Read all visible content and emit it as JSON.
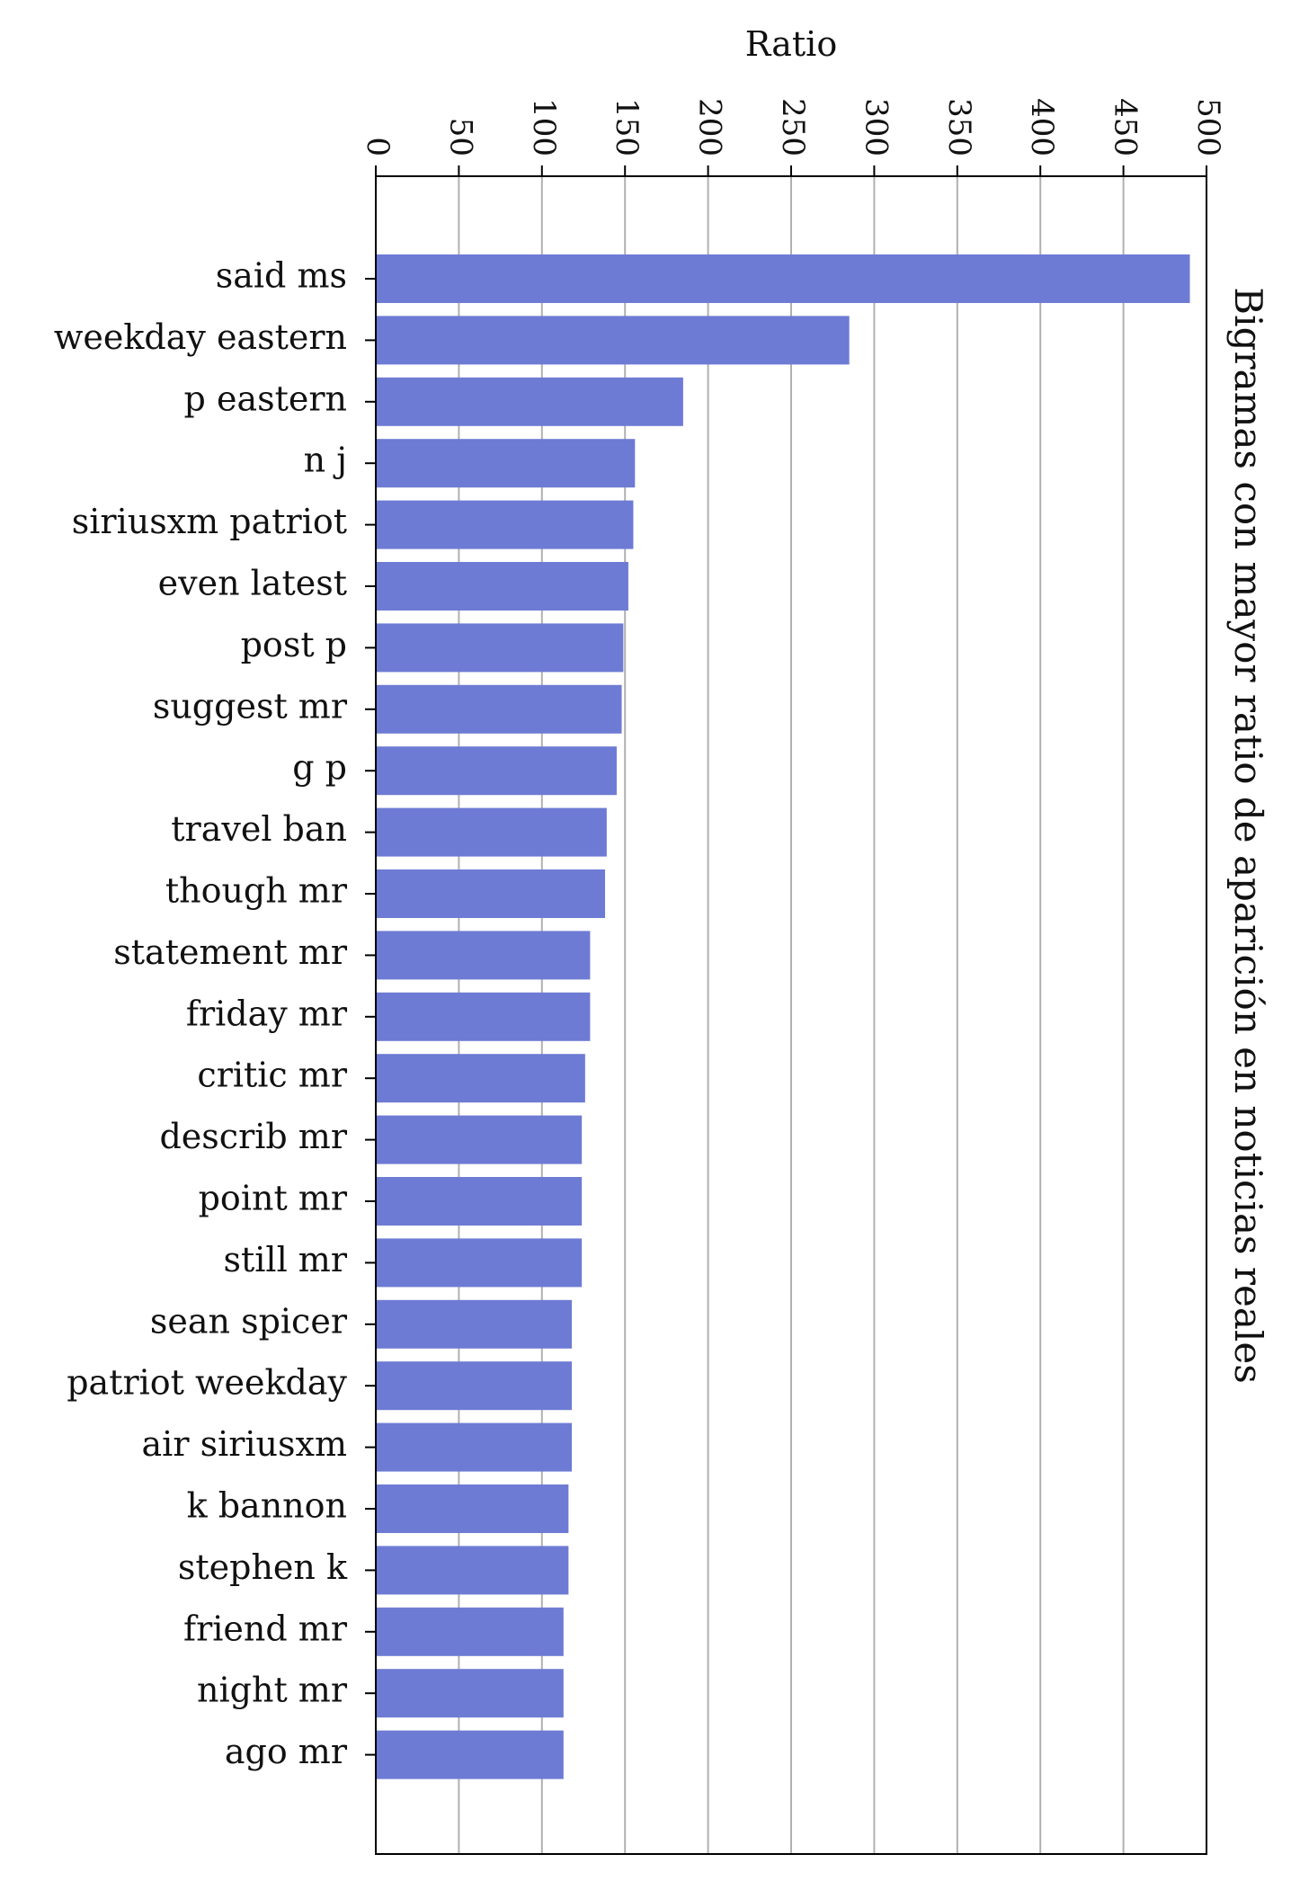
{
  "chart_data": {
    "type": "bar",
    "orientation": "horizontal",
    "title": "Bigramas con mayor ratio de aparición en noticias reales",
    "xlabel": "Ratio",
    "ylabel": "",
    "xlim": [
      0,
      500
    ],
    "xticks": [
      0,
      50,
      100,
      150,
      200,
      250,
      300,
      350,
      400,
      450,
      500
    ],
    "grid": "vertical",
    "x_axis_position": "top",
    "title_position": "right-vertical",
    "categories": [
      "said ms",
      "weekday eastern",
      "p eastern",
      "n j",
      "siriusxm patriot",
      "even latest",
      "post p",
      "suggest mr",
      "g p",
      "travel ban",
      "though mr",
      "statement mr",
      "friday mr",
      "critic mr",
      "describ mr",
      "point mr",
      "still mr",
      "sean spicer",
      "patriot weekday",
      "air siriusxm",
      "k bannon",
      "stephen k",
      "friend mr",
      "night mr",
      "ago mr"
    ],
    "values": [
      490,
      285,
      185,
      156,
      155,
      152,
      149,
      148,
      145,
      139,
      138,
      129,
      129,
      126,
      124,
      124,
      124,
      118,
      118,
      118,
      116,
      116,
      113,
      113,
      113
    ],
    "bar_color": "#6e7bd4"
  }
}
